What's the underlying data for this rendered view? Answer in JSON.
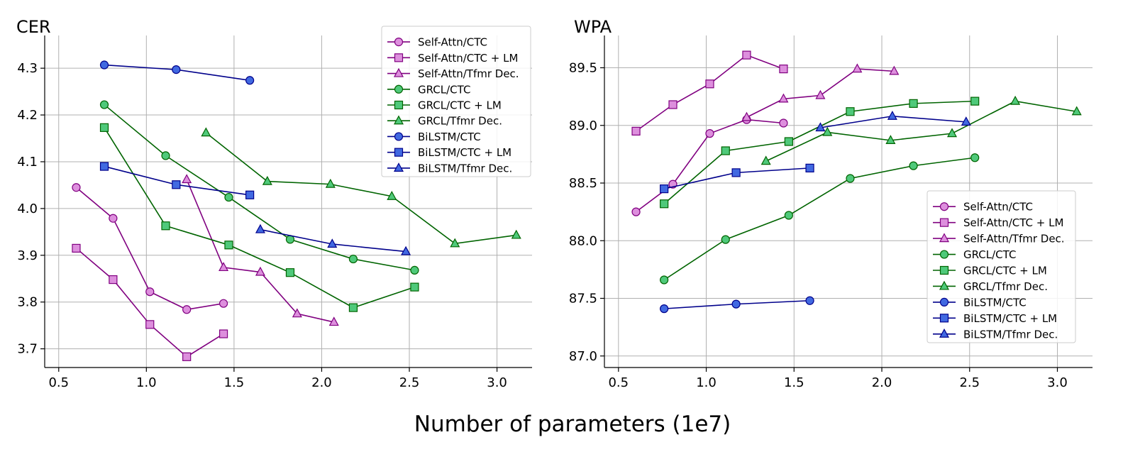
{
  "figure": {
    "xlabel": "Number of parameters (1e7)"
  },
  "styles": {
    "Self-Attn": {
      "line": "#800080",
      "fill": "#dd8fdd"
    },
    "GRCL": {
      "line": "#006400",
      "fill": "#4fc97a"
    },
    "BiLSTM": {
      "line": "#00008b",
      "fill": "#4169e1"
    }
  },
  "chart_data": [
    {
      "type": "line",
      "title": "CER",
      "xlim": [
        0.42,
        3.2
      ],
      "ylim": [
        3.66,
        4.37
      ],
      "xticks": [
        "0.5",
        "1.0",
        "1.5",
        "2.0",
        "2.5",
        "3.0"
      ],
      "yticks": [
        "3.7",
        "3.8",
        "3.9",
        "4.0",
        "4.1",
        "4.2",
        "4.3"
      ],
      "grid": true,
      "legend_position": "top-right",
      "series": [
        {
          "name": "Self-Attn/CTC",
          "family": "Self-Attn",
          "marker": "circle",
          "x": [
            0.6,
            0.81,
            1.02,
            1.23,
            1.44
          ],
          "y": [
            4.045,
            3.979,
            3.822,
            3.784,
            3.797
          ]
        },
        {
          "name": "Self-Attn/CTC + LM",
          "family": "Self-Attn",
          "marker": "square",
          "x": [
            0.6,
            0.81,
            1.02,
            1.23,
            1.44
          ],
          "y": [
            3.915,
            3.848,
            3.752,
            3.683,
            3.732
          ]
        },
        {
          "name": "Self-Attn/Tfmr Dec.",
          "family": "Self-Attn",
          "marker": "triangle",
          "x": [
            1.23,
            1.44,
            1.65,
            1.86,
            2.07
          ],
          "y": [
            4.062,
            3.874,
            3.864,
            3.775,
            3.757
          ]
        },
        {
          "name": "GRCL/CTC",
          "family": "GRCL",
          "marker": "circle",
          "x": [
            0.76,
            1.11,
            1.47,
            1.82,
            2.18,
            2.53
          ],
          "y": [
            4.222,
            4.113,
            4.024,
            3.934,
            3.892,
            3.868
          ]
        },
        {
          "name": "GRCL/CTC + LM",
          "family": "GRCL",
          "marker": "square",
          "x": [
            0.76,
            1.11,
            1.47,
            1.82,
            2.18,
            2.53
          ],
          "y": [
            4.173,
            3.963,
            3.922,
            3.863,
            3.788,
            3.832
          ]
        },
        {
          "name": "GRCL/Tfmr Dec.",
          "family": "GRCL",
          "marker": "triangle",
          "x": [
            1.34,
            1.69,
            2.05,
            2.4,
            2.76,
            3.11
          ],
          "y": [
            4.162,
            4.058,
            4.052,
            4.026,
            3.925,
            3.943
          ]
        },
        {
          "name": "BiLSTM/CTC",
          "family": "BiLSTM",
          "marker": "circle",
          "x": [
            0.76,
            1.17,
            1.59
          ],
          "y": [
            4.307,
            4.297,
            4.274
          ]
        },
        {
          "name": "BiLSTM/CTC + LM",
          "family": "BiLSTM",
          "marker": "square",
          "x": [
            0.76,
            1.17,
            1.59
          ],
          "y": [
            4.09,
            4.051,
            4.029
          ]
        },
        {
          "name": "BiLSTM/Tfmr Dec.",
          "family": "BiLSTM",
          "marker": "triangle",
          "x": [
            1.65,
            2.06,
            2.48
          ],
          "y": [
            3.955,
            3.924,
            3.908
          ]
        }
      ]
    },
    {
      "type": "line",
      "title": "WPA",
      "xlim": [
        0.42,
        3.2
      ],
      "ylim": [
        86.9,
        89.78
      ],
      "xticks": [
        "0.5",
        "1.0",
        "1.5",
        "2.0",
        "2.5",
        "3.0"
      ],
      "yticks": [
        "87.0",
        "87.5",
        "88.0",
        "88.5",
        "89.0",
        "89.5"
      ],
      "grid": true,
      "legend_position": "lower-right",
      "series": [
        {
          "name": "Self-Attn/CTC",
          "family": "Self-Attn",
          "marker": "circle",
          "x": [
            0.6,
            0.81,
            1.02,
            1.23,
            1.44
          ],
          "y": [
            88.25,
            88.49,
            88.93,
            89.05,
            89.02
          ]
        },
        {
          "name": "Self-Attn/CTC + LM",
          "family": "Self-Attn",
          "marker": "square",
          "x": [
            0.6,
            0.81,
            1.02,
            1.23,
            1.44
          ],
          "y": [
            88.95,
            89.18,
            89.36,
            89.61,
            89.49
          ]
        },
        {
          "name": "Self-Attn/Tfmr Dec.",
          "family": "Self-Attn",
          "marker": "triangle",
          "x": [
            1.23,
            1.44,
            1.65,
            1.86,
            2.07
          ],
          "y": [
            89.07,
            89.23,
            89.26,
            89.49,
            89.47
          ]
        },
        {
          "name": "GRCL/CTC",
          "family": "GRCL",
          "marker": "circle",
          "x": [
            0.76,
            1.11,
            1.47,
            1.82,
            2.18,
            2.53
          ],
          "y": [
            87.66,
            88.01,
            88.22,
            88.54,
            88.65,
            88.72
          ]
        },
        {
          "name": "GRCL/CTC + LM",
          "family": "GRCL",
          "marker": "square",
          "x": [
            0.76,
            1.11,
            1.47,
            1.82,
            2.18,
            2.53
          ],
          "y": [
            88.32,
            88.78,
            88.86,
            89.12,
            89.19,
            89.21
          ]
        },
        {
          "name": "GRCL/Tfmr Dec.",
          "family": "GRCL",
          "marker": "triangle",
          "x": [
            1.34,
            1.69,
            2.05,
            2.4,
            2.76,
            3.11
          ],
          "y": [
            88.69,
            88.94,
            88.87,
            88.93,
            89.21,
            89.12
          ]
        },
        {
          "name": "BiLSTM/CTC",
          "family": "BiLSTM",
          "marker": "circle",
          "x": [
            0.76,
            1.17,
            1.59
          ],
          "y": [
            87.41,
            87.45,
            87.48
          ]
        },
        {
          "name": "BiLSTM/CTC + LM",
          "family": "BiLSTM",
          "marker": "square",
          "x": [
            0.76,
            1.17,
            1.59
          ],
          "y": [
            88.45,
            88.59,
            88.63
          ]
        },
        {
          "name": "BiLSTM/Tfmr Dec.",
          "family": "BiLSTM",
          "marker": "triangle",
          "x": [
            1.65,
            2.06,
            2.48
          ],
          "y": [
            88.98,
            89.08,
            89.03
          ]
        }
      ]
    }
  ]
}
